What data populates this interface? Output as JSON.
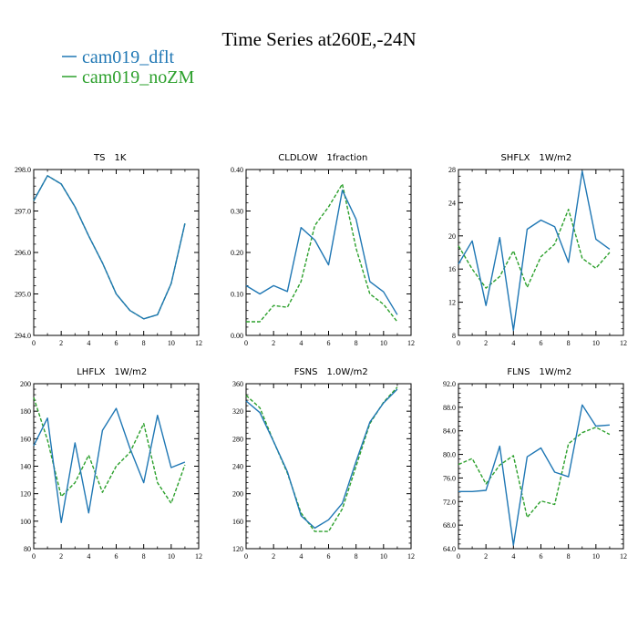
{
  "figure_title": "Time Series at260E,-24N",
  "colors": {
    "dflt": "#1f77b4",
    "nozm": "#2ca02c",
    "axis": "#000000"
  },
  "legend": [
    {
      "label": "cam019_dflt",
      "color": "#1f77b4",
      "dashed": false
    },
    {
      "label": "cam019_noZM",
      "color": "#2ca02c",
      "dashed": true
    }
  ],
  "chart_data": [
    {
      "type": "line",
      "title_var": "TS",
      "title_units": "1K",
      "x": [
        0,
        1,
        2,
        3,
        4,
        5,
        6,
        7,
        8,
        9,
        10,
        11
      ],
      "xlim": [
        0,
        12
      ],
      "xticks": [
        0,
        2,
        4,
        6,
        8,
        10,
        12
      ],
      "ylim": [
        294.0,
        298.0
      ],
      "yticks": [
        294.0,
        295.0,
        296.0,
        297.0,
        298.0
      ],
      "ytick_labels": [
        "294.0",
        "295.0",
        "296.0",
        "297.0",
        "298.0"
      ],
      "series": [
        {
          "name": "cam019_dflt",
          "values": [
            297.25,
            297.85,
            297.65,
            297.1,
            296.4,
            295.75,
            295.0,
            294.6,
            294.4,
            294.5,
            295.25,
            296.7
          ]
        },
        {
          "name": "cam019_noZM",
          "values": [
            297.25,
            297.85,
            297.65,
            297.1,
            296.4,
            295.75,
            295.0,
            294.6,
            294.4,
            294.5,
            295.25,
            296.7
          ]
        }
      ]
    },
    {
      "type": "line",
      "title_var": "CLDLOW",
      "title_units": "1fraction",
      "x": [
        0,
        1,
        2,
        3,
        4,
        5,
        6,
        7,
        8,
        9,
        10,
        11
      ],
      "xlim": [
        0,
        12
      ],
      "xticks": [
        0,
        2,
        4,
        6,
        8,
        10,
        12
      ],
      "ylim": [
        0.0,
        0.4
      ],
      "yticks": [
        0.0,
        0.1,
        0.2,
        0.3,
        0.4
      ],
      "ytick_labels": [
        "0.00",
        "0.10",
        "0.20",
        "0.30",
        "0.40"
      ],
      "series": [
        {
          "name": "cam019_dflt",
          "values": [
            0.12,
            0.1,
            0.12,
            0.106,
            0.26,
            0.23,
            0.17,
            0.35,
            0.28,
            0.13,
            0.105,
            0.05
          ]
        },
        {
          "name": "cam019_noZM",
          "values": [
            0.033,
            0.033,
            0.072,
            0.068,
            0.13,
            0.265,
            0.31,
            0.365,
            0.21,
            0.1,
            0.075,
            0.033
          ]
        }
      ]
    },
    {
      "type": "line",
      "title_var": "SHFLX",
      "title_units": "1W/m2",
      "x": [
        0,
        1,
        2,
        3,
        4,
        5,
        6,
        7,
        8,
        9,
        10,
        11
      ],
      "xlim": [
        0,
        12
      ],
      "xticks": [
        0,
        2,
        4,
        6,
        8,
        10,
        12
      ],
      "ylim": [
        8,
        28
      ],
      "yticks": [
        8,
        12,
        16,
        20,
        24,
        28
      ],
      "ytick_labels": [
        "8",
        "12",
        "16",
        "20",
        "24",
        "28"
      ],
      "series": [
        {
          "name": "cam019_dflt",
          "values": [
            16.6,
            19.4,
            11.6,
            19.8,
            8.6,
            20.8,
            21.9,
            21.1,
            16.8,
            27.8,
            19.6,
            18.4
          ]
        },
        {
          "name": "cam019_noZM",
          "values": [
            18.8,
            16.0,
            13.7,
            15.1,
            18.2,
            13.8,
            17.5,
            19.0,
            23.2,
            17.3,
            16.1,
            18.0
          ]
        }
      ]
    },
    {
      "type": "line",
      "title_var": "LHFLX",
      "title_units": "1W/m2",
      "x": [
        0,
        1,
        2,
        3,
        4,
        5,
        6,
        7,
        8,
        9,
        10,
        11
      ],
      "xlim": [
        0,
        12
      ],
      "xticks": [
        0,
        2,
        4,
        6,
        8,
        10,
        12
      ],
      "ylim": [
        80,
        200
      ],
      "yticks": [
        80,
        100,
        120,
        140,
        160,
        180,
        200
      ],
      "ytick_labels": [
        "80",
        "100",
        "120",
        "140",
        "160",
        "180",
        "200"
      ],
      "series": [
        {
          "name": "cam019_dflt",
          "values": [
            155,
            175,
            99,
            157,
            106,
            166,
            182,
            153,
            128,
            177,
            139,
            143
          ]
        },
        {
          "name": "cam019_noZM",
          "values": [
            190,
            159,
            118,
            128,
            148,
            121,
            140,
            150,
            171,
            128,
            113,
            141
          ]
        }
      ]
    },
    {
      "type": "line",
      "title_var": "FSNS",
      "title_units": "1.0W/m2",
      "x": [
        0,
        1,
        2,
        3,
        4,
        5,
        6,
        7,
        8,
        9,
        10,
        11
      ],
      "xlim": [
        0,
        12
      ],
      "xticks": [
        0,
        2,
        4,
        6,
        8,
        10,
        12
      ],
      "ylim": [
        120,
        360
      ],
      "yticks": [
        120,
        160,
        200,
        240,
        280,
        320,
        360
      ],
      "ytick_labels": [
        "120",
        "160",
        "200",
        "240",
        "280",
        "320",
        "360"
      ],
      "series": [
        {
          "name": "cam019_dflt",
          "values": [
            335,
            318,
            276,
            232,
            168,
            150,
            162,
            186,
            247,
            304,
            332,
            352
          ]
        },
        {
          "name": "cam019_noZM",
          "values": [
            343,
            325,
            276,
            230,
            172,
            145,
            145,
            178,
            240,
            302,
            333,
            355
          ]
        }
      ]
    },
    {
      "type": "line",
      "title_var": "FLNS",
      "title_units": "1W/m2",
      "x": [
        0,
        1,
        2,
        3,
        4,
        5,
        6,
        7,
        8,
        9,
        10,
        11
      ],
      "xlim": [
        0,
        12
      ],
      "xticks": [
        0,
        2,
        4,
        6,
        8,
        10,
        12
      ],
      "ylim": [
        64.0,
        92.0
      ],
      "yticks": [
        64,
        68,
        72,
        76,
        80,
        84,
        88,
        92
      ],
      "ytick_labels": [
        "64.0",
        "68.0",
        "72.0",
        "76.0",
        "80.0",
        "84.0",
        "88.0",
        "92.0"
      ],
      "series": [
        {
          "name": "cam019_dflt",
          "values": [
            73.7,
            73.7,
            73.9,
            81.4,
            64.6,
            79.6,
            81.1,
            77.0,
            76.2,
            88.4,
            84.8,
            85.0
          ]
        },
        {
          "name": "cam019_noZM",
          "values": [
            78.3,
            79.3,
            75.0,
            78.2,
            79.8,
            69.3,
            72.1,
            71.5,
            81.8,
            83.7,
            84.6,
            83.4
          ]
        }
      ]
    }
  ]
}
